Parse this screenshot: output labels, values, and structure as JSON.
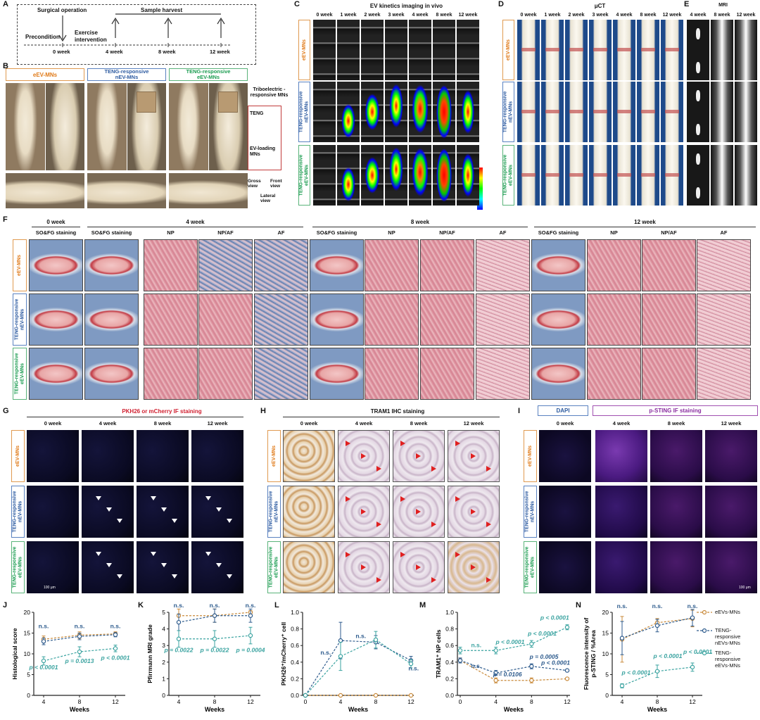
{
  "letters": [
    "A",
    "B",
    "C",
    "D",
    "E",
    "F",
    "G",
    "H",
    "I",
    "J",
    "K",
    "L",
    "M",
    "N"
  ],
  "groups": {
    "g1": "eEV-MNs",
    "g2a": "TENG-responsive",
    "g2b": "nEV-MNs",
    "g3a": "TENG-responsive",
    "g3b": "eEV-MNs"
  },
  "panelA": {
    "surgery": "Surgical operation",
    "harvest": "Sample harvest",
    "precondition": "Precondition",
    "exercise": "Exercise intervention",
    "ticks": [
      "0 week",
      "4 week",
      "8 week",
      "12 week"
    ]
  },
  "panelB": {
    "tribo": "Triboelectric -responsive MNs",
    "teng": "TENG",
    "evload": "EV-loading MNs",
    "gross": "Gross view",
    "front": "Front view",
    "lateral": "Lateral view"
  },
  "panelC": {
    "title": "EV kinetics imaging in vivo",
    "cols": [
      "0 week",
      "1 week",
      "2 week",
      "3 week",
      "4 week",
      "8 week",
      "12 week"
    ]
  },
  "panelD": {
    "title": "μCT",
    "cols": [
      "0 week",
      "1 week",
      "2 week",
      "3 week",
      "4 week",
      "8 week",
      "12 week"
    ]
  },
  "panelE": {
    "title": "MRI",
    "cols": [
      "4 week",
      "8 week",
      "12 week"
    ]
  },
  "panelF": {
    "times": [
      "0 week",
      "4 week",
      "8 week",
      "12 week"
    ],
    "stain": "SO&FG staining",
    "np": "NP",
    "npaf": "NP/AF",
    "af": "AF"
  },
  "panelG": {
    "title": "PKH26 or mCherry IF staining",
    "cols": [
      "0 week",
      "4 week",
      "8 week",
      "12 week"
    ],
    "scale": "100 μm"
  },
  "panelH": {
    "title": "TRAM1 IHC staining",
    "cols": [
      "0 week",
      "4 week",
      "8 week",
      "12 week"
    ]
  },
  "panelI": {
    "dapi": "DAPI",
    "title": "p-STING IF staining",
    "cols": [
      "0 week",
      "4 week",
      "8 week",
      "12 week"
    ],
    "scale": "100 μm"
  },
  "legend": {
    "s1": "eEVs-MNs",
    "s2a": "TENG-",
    "s2b": "responsive",
    "s2c": "nEVs-MNs",
    "s3a": "TENG-",
    "s3b": "responsive",
    "s3c": "eEVs-MNs"
  },
  "colors": {
    "orange": "#c98a3a",
    "blue": "#2c5a8c",
    "teal": "#3aa3a0"
  },
  "chart_data": [
    {
      "id": "J",
      "type": "line",
      "xlabel": "Weeks",
      "ylabel": "Histological score",
      "x": [
        4,
        8,
        12
      ],
      "ylim": [
        0,
        20
      ],
      "yticks": [
        0,
        5,
        10,
        15,
        20
      ],
      "series": [
        {
          "name": "eEVs-MNs",
          "values": [
            13.5,
            14.5,
            14.8
          ],
          "err": [
            0.8,
            0.8,
            0.5
          ]
        },
        {
          "name": "TENG-responsive nEVs-MNs",
          "values": [
            13,
            14.2,
            14.6
          ],
          "err": [
            0.8,
            0.8,
            0.5
          ]
        },
        {
          "name": "TENG-responsive eEVs-MNs",
          "values": [
            8.3,
            10.5,
            11.3
          ],
          "err": [
            1,
            1.2,
            0.8
          ]
        }
      ],
      "ann": [
        {
          "t": "n.s.",
          "x": 4,
          "y": 16.2,
          "c": "#2c5a8c"
        },
        {
          "t": "n.s.",
          "x": 8,
          "y": 16.2,
          "c": "#2c5a8c"
        },
        {
          "t": "n.s.",
          "x": 12,
          "y": 16.2,
          "c": "#2c5a8c"
        },
        {
          "t": "p < 0.0001",
          "x": 4,
          "y": 6.3,
          "c": "#3aa3a0"
        },
        {
          "t": "p = 0.0013",
          "x": 8,
          "y": 7.8,
          "c": "#3aa3a0"
        },
        {
          "t": "p < 0.0001",
          "x": 12,
          "y": 8.6,
          "c": "#3aa3a0"
        }
      ]
    },
    {
      "id": "K",
      "type": "line",
      "xlabel": "Weeks",
      "ylabel": "Pfirrmann MRI grade",
      "x": [
        4,
        8,
        12
      ],
      "ylim": [
        0,
        5
      ],
      "yticks": [
        0,
        1,
        2,
        3,
        4,
        5
      ],
      "series": [
        {
          "name": "eEVs-MNs",
          "values": [
            4.8,
            4.8,
            5
          ],
          "err": [
            0.4,
            0.4,
            0.1
          ]
        },
        {
          "name": "TENG-responsive nEVs-MNs",
          "values": [
            4.4,
            4.8,
            4.8
          ],
          "err": [
            0.5,
            0.4,
            0.4
          ]
        },
        {
          "name": "TENG-responsive eEVs-MNs",
          "values": [
            3.4,
            3.4,
            3.6
          ],
          "err": [
            0.5,
            0.5,
            0.5
          ]
        }
      ],
      "ann": [
        {
          "t": "n.s.",
          "x": 4,
          "y": 5.3,
          "c": "#2c5a8c"
        },
        {
          "t": "n.s.",
          "x": 8,
          "y": 5.3,
          "c": "#2c5a8c"
        },
        {
          "t": "n.s.",
          "x": 12,
          "y": 5.3,
          "c": "#2c5a8c"
        },
        {
          "t": "p = 0.0022",
          "x": 4,
          "y": 2.6,
          "c": "#3aa3a0"
        },
        {
          "t": "p = 0.0022",
          "x": 8,
          "y": 2.6,
          "c": "#3aa3a0"
        },
        {
          "t": "p = 0.0004",
          "x": 12,
          "y": 2.6,
          "c": "#3aa3a0"
        }
      ]
    },
    {
      "id": "L",
      "type": "line",
      "xlabel": "Weeks",
      "ylabel": "PKH26⁺/mCherry⁺ cell",
      "x": [
        0,
        4,
        8,
        12
      ],
      "ylim": [
        0,
        1
      ],
      "yticks": [
        0,
        0.2,
        0.4,
        0.6,
        0.8,
        1.0
      ],
      "series": [
        {
          "name": "eEVs-MNs",
          "values": [
            0,
            0,
            0,
            0
          ],
          "err": [
            0,
            0,
            0,
            0
          ]
        },
        {
          "name": "TENG-responsive nEVs-MNs",
          "values": [
            0,
            0.66,
            0.64,
            0.42
          ],
          "err": [
            0,
            0.22,
            0.08,
            0.05
          ]
        },
        {
          "name": "TENG-responsive eEVs-MNs",
          "values": [
            0,
            0.47,
            0.67,
            0.38
          ],
          "err": [
            0,
            0.17,
            0.1,
            0.05
          ]
        }
      ],
      "ann": [
        {
          "t": "n.s.",
          "x": 2.3,
          "y": 0.49,
          "c": "#2c5a8c"
        },
        {
          "t": "n.s.",
          "x": 6.3,
          "y": 0.69,
          "c": "#2c5a8c"
        },
        {
          "t": "n.s.",
          "x": 12.3,
          "y": 0.3,
          "c": "#2c5a8c"
        }
      ]
    },
    {
      "id": "M",
      "type": "line",
      "xlabel": "Weeks",
      "ylabel": "TRAM1⁺ NP cells",
      "x": [
        0,
        4,
        8,
        12
      ],
      "ylim": [
        0,
        1
      ],
      "yticks": [
        0,
        0.2,
        0.4,
        0.6,
        0.8,
        1.0
      ],
      "series": [
        {
          "name": "eEVs-MNs",
          "values": [
            0.42,
            0.18,
            0.18,
            0.2
          ],
          "err": [
            0.03,
            0.03,
            0.03,
            0.01
          ]
        },
        {
          "name": "TENG-responsive nEVs-MNs",
          "values": [
            0.42,
            0.27,
            0.35,
            0.3
          ],
          "err": [
            0.03,
            0.03,
            0.03,
            0.01
          ]
        },
        {
          "name": "TENG-responsive eEVs-MNs",
          "values": [
            0.54,
            0.54,
            0.62,
            0.82
          ],
          "err": [
            0.04,
            0.04,
            0.04,
            0.03
          ]
        }
      ],
      "ann": [
        {
          "t": "n.s.",
          "x": 1.8,
          "y": 0.58,
          "c": "#3aa3a0"
        },
        {
          "t": "p < 0.0001",
          "x": 5.6,
          "y": 0.62,
          "c": "#3aa3a0"
        },
        {
          "t": "p < 0.0001",
          "x": 9.2,
          "y": 0.72,
          "c": "#3aa3a0"
        },
        {
          "t": "p < 0.0001",
          "x": 10.6,
          "y": 0.91,
          "c": "#3aa3a0"
        },
        {
          "t": "n.s.",
          "x": 1.8,
          "y": 0.33,
          "c": "#2c5a8c"
        },
        {
          "t": "p = 0.0106",
          "x": 5.3,
          "y": 0.23,
          "c": "#2c5a8c"
        },
        {
          "t": "p = 0.0005",
          "x": 9.4,
          "y": 0.44,
          "c": "#2c5a8c"
        },
        {
          "t": "p < 0.0001",
          "x": 10.7,
          "y": 0.37,
          "c": "#2c5a8c"
        }
      ]
    },
    {
      "id": "N",
      "type": "line",
      "xlabel": "Weeks",
      "ylabel": "Fluorescence intensity of p-STING / %Area",
      "x": [
        4,
        8,
        12
      ],
      "ylim": [
        0,
        20
      ],
      "yticks": [
        0,
        5,
        10,
        15,
        20
      ],
      "series": [
        {
          "name": "eEVs-MNs",
          "values": [
            13.5,
            17.5,
            18.5
          ],
          "err": [
            5.5,
            1,
            2
          ]
        },
        {
          "name": "TENG-responsive nEVs-MNs",
          "values": [
            13.8,
            16.8,
            18.7
          ],
          "err": [
            4,
            1.5,
            2
          ]
        },
        {
          "name": "TENG-responsive eEVs-MNs",
          "values": [
            2.3,
            5.8,
            6.8
          ],
          "err": [
            0.5,
            1.5,
            1
          ]
        }
      ],
      "ann": [
        {
          "t": "n.s.",
          "x": 4,
          "y": 21,
          "c": "#2c5a8c"
        },
        {
          "t": "n.s.",
          "x": 8,
          "y": 21,
          "c": "#2c5a8c"
        },
        {
          "t": "n.s.",
          "x": 12,
          "y": 21,
          "c": "#2c5a8c"
        },
        {
          "t": "p < 0.0001",
          "x": 5.6,
          "y": 5,
          "c": "#3aa3a0"
        },
        {
          "t": "p < 0.0001",
          "x": 9.2,
          "y": 9,
          "c": "#3aa3a0"
        },
        {
          "t": "p < 0.0001",
          "x": 12.6,
          "y": 10,
          "c": "#3aa3a0"
        }
      ]
    }
  ]
}
